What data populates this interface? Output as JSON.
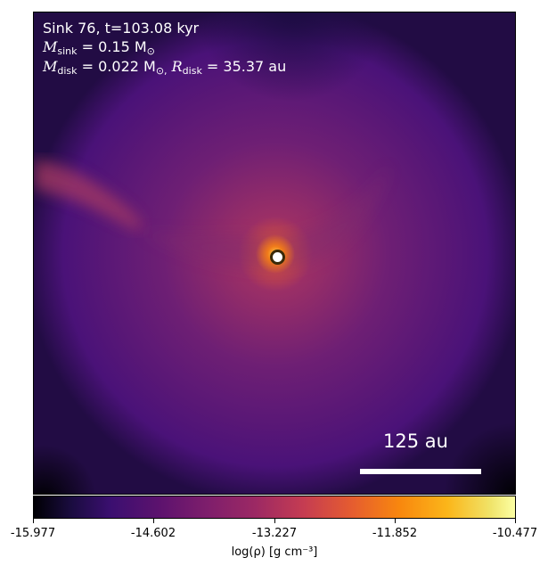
{
  "title": "Sink 76, t=103.08 kyr",
  "sink_mass": {
    "symbol": "M",
    "subscript": "sink",
    "expr": "= 0.15 M",
    "unit_sub": "⊙"
  },
  "disk_props": {
    "m_symbol": "M",
    "m_sub": "disk",
    "m_expr": "= 0.022 M",
    "m_unit_sub": "⊙,",
    "r_symbol": "R",
    "r_sub": "disk",
    "r_expr": "= 35.37 au"
  },
  "scale_bar": {
    "label": "125 au"
  },
  "colorbar": {
    "ticks": [
      "-15.977",
      "-14.602",
      "-13.227",
      "-11.852",
      "-10.477"
    ],
    "label": "log(ρ) [g cm⁻³]",
    "colormap": "inferno"
  },
  "colors": {
    "background": "#5b1a78",
    "core": "#ffb43c"
  }
}
